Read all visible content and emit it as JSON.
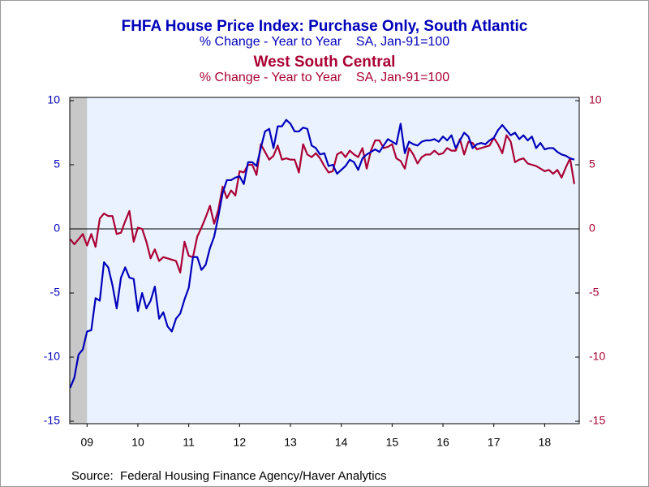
{
  "chart_data": {
    "type": "line",
    "series": [
      {
        "name": "FHFA House Price Index: Purchase Only, South Atlantic",
        "subtitle": "% Change - Year to Year    SA, Jan-91=100",
        "color": "#0000bb",
        "axis": "y",
        "values": [
          -12.4,
          -11.6,
          -9.8,
          -9.4,
          -8.0,
          -7.9,
          -5.4,
          -5.6,
          -2.6,
          -3.0,
          -4.4,
          -6.2,
          -3.8,
          -3.0,
          -3.8,
          -3.9,
          -6.4,
          -5.0,
          -6.2,
          -5.6,
          -4.5,
          -7.0,
          -6.5,
          -7.6,
          -8.0,
          -7.0,
          -6.6,
          -5.5,
          -4.6,
          -2.2,
          -2.2,
          -3.2,
          -2.8,
          -1.5,
          -0.6,
          1.0,
          2.8,
          3.8,
          3.8,
          4.0,
          4.1,
          3.5,
          5.2,
          5.2,
          4.9,
          6.3,
          7.6,
          7.8,
          6.3,
          8.0,
          8.0,
          8.5,
          8.2,
          7.6,
          7.6,
          7.9,
          7.8,
          6.5,
          6.3,
          5.8,
          5.9,
          4.9,
          5.0,
          4.3,
          4.6,
          4.9,
          5.4,
          5.2,
          4.6,
          5.5,
          5.8,
          6.0,
          6.2,
          6.0,
          6.5,
          7.0,
          6.8,
          6.6,
          8.2,
          5.9,
          6.8,
          6.6,
          6.5,
          6.8,
          6.9,
          6.9,
          7.0,
          6.8,
          7.2,
          6.9,
          7.3,
          6.3,
          6.9,
          7.5,
          7.2,
          6.3,
          6.6,
          6.7,
          6.6,
          6.9,
          7.1,
          7.7,
          8.1,
          7.7,
          7.3,
          7.5,
          7.0,
          7.3,
          6.9,
          7.2,
          6.3,
          6.7,
          6.2,
          6.3,
          6.3,
          6.0,
          5.8,
          5.7,
          5.5,
          5.4
        ]
      },
      {
        "name": "West South Central",
        "subtitle": "% Change - Year to Year    SA, Jan-91=100",
        "color": "#aa0033",
        "axis": "y2",
        "values": [
          -0.8,
          -1.2,
          -0.8,
          -0.4,
          -1.3,
          -0.4,
          -1.4,
          0.8,
          1.2,
          1.0,
          1.0,
          -0.4,
          -0.3,
          0.6,
          1.4,
          -1.0,
          0.1,
          0.0,
          -1.0,
          -2.3,
          -1.6,
          -2.5,
          -2.2,
          -2.3,
          -2.4,
          -2.5,
          -3.4,
          -1.0,
          -2.1,
          -2.2,
          -0.6,
          0.1,
          0.9,
          1.8,
          0.4,
          1.5,
          3.3,
          2.4,
          3.0,
          2.6,
          4.5,
          4.4,
          5.0,
          5.0,
          4.2,
          6.6,
          6.0,
          5.4,
          5.7,
          6.5,
          5.4,
          5.5,
          5.4,
          5.4,
          4.4,
          6.6,
          5.8,
          5.6,
          5.9,
          5.5,
          4.9,
          4.4,
          4.5,
          5.8,
          6.0,
          5.6,
          6.1,
          5.8,
          5.6,
          6.3,
          4.7,
          6.1,
          6.9,
          6.9,
          6.3,
          6.4,
          6.6,
          5.5,
          5.3,
          4.7,
          6.3,
          5.8,
          5.1,
          5.6,
          5.8,
          5.8,
          6.1,
          5.8,
          5.9,
          6.3,
          6.1,
          6.1,
          7.0,
          5.8,
          6.8,
          6.7,
          6.2,
          6.3,
          6.4,
          6.5,
          7.1,
          6.6,
          5.9,
          7.3,
          6.8,
          5.2,
          5.4,
          5.5,
          5.1,
          5.0,
          4.9,
          4.7,
          4.5,
          4.6,
          4.3,
          4.6,
          4.0,
          4.8,
          5.5,
          3.5
        ]
      }
    ],
    "x": [
      2009.167,
      2009.25,
      2009.333,
      2009.417,
      2009.5,
      2009.583,
      2009.667,
      2009.75,
      2009.833,
      2009.917,
      2010.0,
      2010.083,
      2010.167,
      2010.25,
      2010.333,
      2010.417,
      2010.5,
      2010.583,
      2010.667,
      2010.75,
      2010.833,
      2010.917,
      2011.0,
      2011.083,
      2011.167,
      2011.25,
      2011.333,
      2011.417,
      2011.5,
      2011.583,
      2011.667,
      2011.75,
      2011.833,
      2011.917,
      2012.0,
      2012.083,
      2012.167,
      2012.25,
      2012.333,
      2012.417,
      2012.5,
      2012.583,
      2012.667,
      2012.75,
      2012.833,
      2012.917,
      2013.0,
      2013.083,
      2013.167,
      2013.25,
      2013.333,
      2013.417,
      2013.5,
      2013.583,
      2013.667,
      2013.75,
      2013.833,
      2013.917,
      2014.0,
      2014.083,
      2014.167,
      2014.25,
      2014.333,
      2014.417,
      2014.5,
      2014.583,
      2014.667,
      2014.75,
      2014.833,
      2014.917,
      2015.0,
      2015.083,
      2015.167,
      2015.25,
      2015.333,
      2015.417,
      2015.5,
      2015.583,
      2015.667,
      2015.75,
      2015.833,
      2015.917,
      2016.0,
      2016.083,
      2016.167,
      2016.25,
      2016.333,
      2016.417,
      2016.5,
      2016.583,
      2016.667,
      2016.75,
      2016.833,
      2016.917,
      2017.0,
      2017.083,
      2017.167,
      2017.25,
      2017.333,
      2017.417,
      2017.5,
      2017.583,
      2017.667,
      2017.75,
      2017.833,
      2017.917,
      2018.0,
      2018.083,
      2018.167,
      2018.25,
      2018.333,
      2018.417,
      2018.5,
      2018.583,
      2018.667,
      2018.75,
      2018.833,
      2018.917,
      2019.0,
      2019.083
    ],
    "xlim": [
      2009.16,
      2019.18
    ],
    "xticks": [
      {
        "value": 2009.5,
        "label": "09"
      },
      {
        "value": 2010.5,
        "label": "10"
      },
      {
        "value": 2011.5,
        "label": "11"
      },
      {
        "value": 2012.5,
        "label": "12"
      },
      {
        "value": 2013.5,
        "label": "13"
      },
      {
        "value": 2014.5,
        "label": "14"
      },
      {
        "value": 2015.5,
        "label": "15"
      },
      {
        "value": 2016.5,
        "label": "16"
      },
      {
        "value": 2017.5,
        "label": "17"
      },
      {
        "value": 2018.5,
        "label": "18"
      }
    ],
    "ylim": [
      -15,
      10
    ],
    "yticks": [
      10,
      5,
      0,
      -5,
      -10,
      -15
    ],
    "y2lim": [
      -15,
      10
    ],
    "y2ticks": [
      10,
      5,
      0,
      -5,
      -10,
      -15
    ],
    "recession_shading": {
      "from": 2009.16,
      "to": 2009.5
    },
    "zero_line": 0,
    "source": "Source:  Federal Housing Finance Agency/Haver Analytics"
  }
}
